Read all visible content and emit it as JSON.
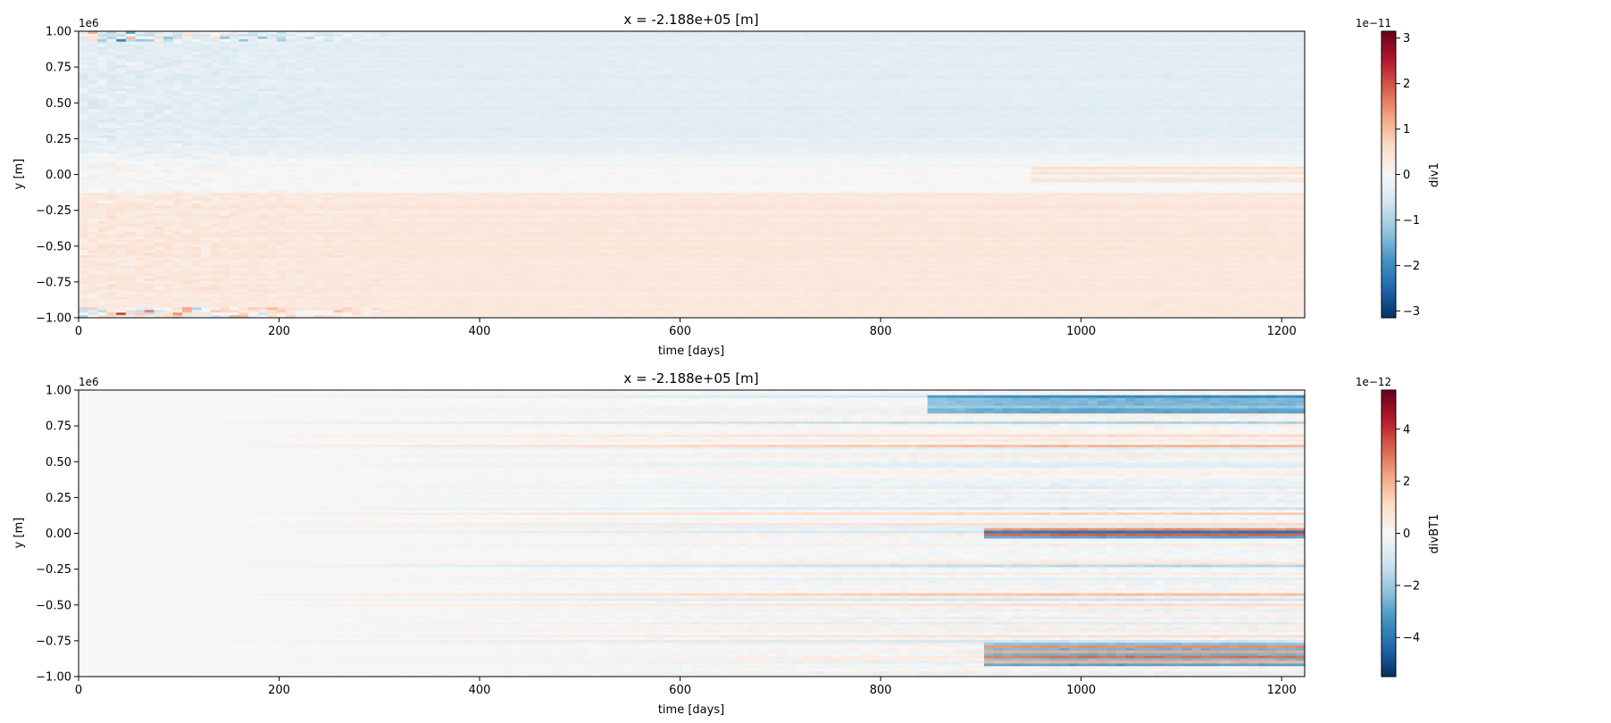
{
  "chart_data": [
    {
      "type": "heatmap",
      "title": "x = -2.188e+05 [m]",
      "xlabel": "time [days]",
      "ylabel": "y [m]",
      "y_offset_label": "1e6",
      "xlim": [
        0,
        1223
      ],
      "ylim": [
        -1.0,
        1.0
      ],
      "x_ticks": [
        0,
        200,
        400,
        600,
        800,
        1000,
        1200
      ],
      "x_tick_labels": [
        "0",
        "200",
        "400",
        "600",
        "800",
        "1000",
        "1200"
      ],
      "y_ticks": [
        -1.0,
        -0.75,
        -0.5,
        -0.25,
        0.0,
        0.25,
        0.5,
        0.75,
        1.0
      ],
      "y_tick_labels": [
        "−1.00",
        "−0.75",
        "−0.50",
        "−0.25",
        "0.00",
        "0.25",
        "0.50",
        "0.75",
        "1.00"
      ],
      "colormap": "RdBu_r",
      "colorbar": {
        "label": "div1",
        "offset_label": "1e−11",
        "vmin": -3.15,
        "vmax": 3.15,
        "ticks": [
          -3,
          -2,
          -1,
          0,
          1,
          2,
          3
        ],
        "tick_labels": [
          "−3",
          "−2",
          "−1",
          "0",
          "1",
          "2",
          "3"
        ]
      },
      "pattern": "northern half weakly negative (blue), southern half weakly positive (red); strongest variability at edges y=±1e6 during first ~300 days"
    },
    {
      "type": "heatmap",
      "title": "x = -2.188e+05 [m]",
      "xlabel": "time [days]",
      "ylabel": "y [m]",
      "y_offset_label": "1e6",
      "xlim": [
        0,
        1223
      ],
      "ylim": [
        -1.0,
        1.0
      ],
      "x_ticks": [
        0,
        200,
        400,
        600,
        800,
        1000,
        1200
      ],
      "x_tick_labels": [
        "0",
        "200",
        "400",
        "600",
        "800",
        "1000",
        "1200"
      ],
      "y_ticks": [
        -1.0,
        -0.75,
        -0.5,
        -0.25,
        0.0,
        0.25,
        0.5,
        0.75,
        1.0
      ],
      "y_tick_labels": [
        "−1.00",
        "−0.75",
        "−0.50",
        "−0.25",
        "0.00",
        "0.25",
        "0.50",
        "0.75",
        "1.00"
      ],
      "colormap": "RdBu_r",
      "colorbar": {
        "label": "divBT1",
        "offset_label": "1e−12",
        "vmin": -5.5,
        "vmax": 5.5,
        "ticks": [
          -4,
          -2,
          0,
          2,
          4
        ],
        "tick_labels": [
          "−4",
          "−2",
          "0",
          "2",
          "4"
        ]
      },
      "pattern": "near zero for first ~100 days, then horizontal banded structure growing in amplitude with time; strongest bands after ~900 days near y=0.9e6, 0.0, -0.9e6"
    }
  ]
}
